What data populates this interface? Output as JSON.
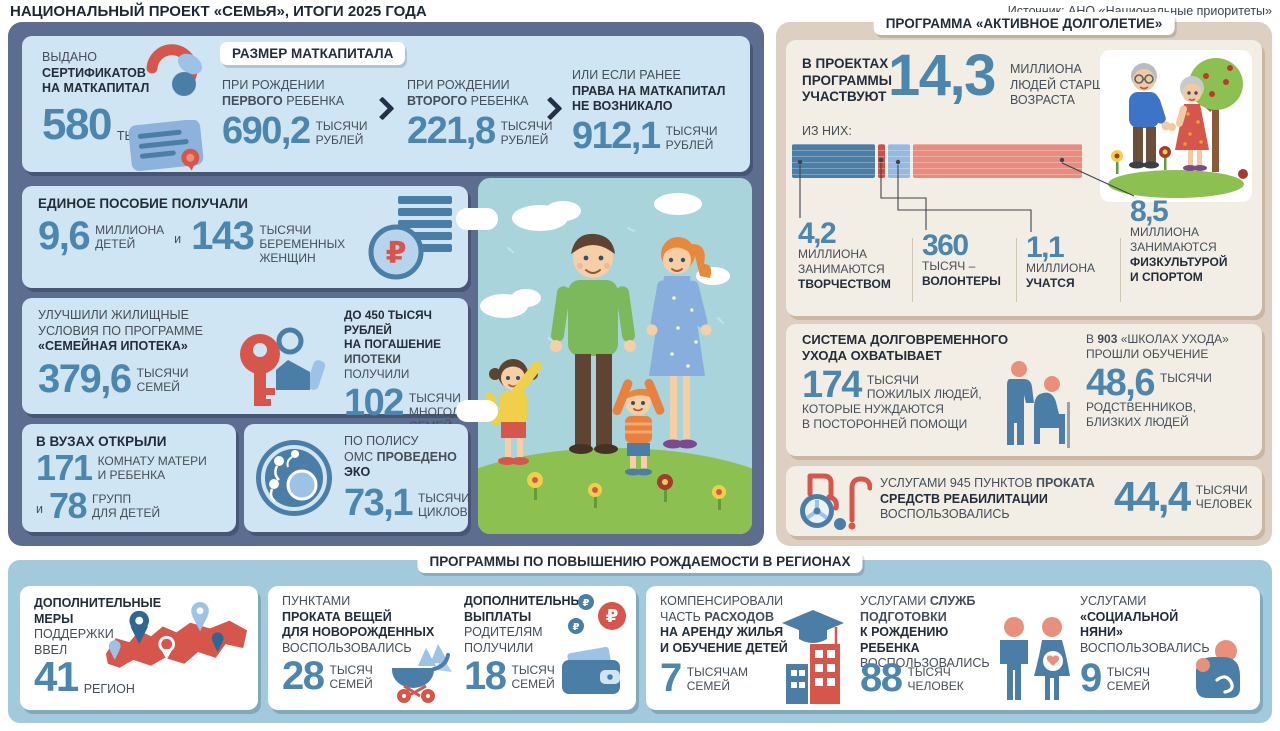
{
  "header": {
    "title": "НАЦИОНАЛЬНЫЙ ПРОЕКТ «СЕМЬЯ», ИТОГИ 2025 ГОДА",
    "source": "Источник: АНО «Национальные приоритеты»"
  },
  "colors": {
    "navy_panel": "#5d6d90",
    "card_blue": "#cfe5f3",
    "tan_panel": "#ddd0c2",
    "cream_card": "#f3eee5",
    "band_blue": "#a2c9dc",
    "number_blue": "#4c86ad",
    "accent_red": "#d6564c",
    "accent_blue": "#4b7ea6",
    "light_blue": "#9cc2e5",
    "salmon": "#e8907c"
  },
  "left": {
    "certificates": {
      "t1": "ВЫДАНО",
      "t2": "СЕРТИФИКАТОВ",
      "t3": "НА МАТКАПИТАЛ",
      "value": "580",
      "unit": "ТЫС."
    },
    "matcapital": {
      "label": "РАЗМЕР МАТКАПИТАЛА",
      "col1": {
        "top": "ПРИ РОЖДЕНИИ",
        "bold": "ПЕРВОГО",
        "rest": " РЕБЕНКА",
        "value": "690,2",
        "u1": "ТЫСЯЧИ",
        "u2": "РУБЛЕЙ"
      },
      "col2": {
        "top": "ПРИ РОЖДЕНИИ",
        "bold": "ВТОРОГО",
        "rest": " РЕБЕНКА",
        "value": "221,8",
        "u1": "ТЫСЯЧИ",
        "u2": "РУБЛЕЙ"
      },
      "col3": {
        "top": "ИЛИ ЕСЛИ РАНЕЕ",
        "bold1": "ПРАВА НА МАТКАПИТАЛ",
        "bold2": "НЕ ВОЗНИКАЛО",
        "value": "912,1",
        "u1": "ТЫСЯЧИ",
        "u2": "РУБЛЕЙ"
      }
    },
    "benefit": {
      "title": "ЕДИНОЕ ПОСОБИЕ ПОЛУЧАЛИ",
      "v1": "9,6",
      "v1u1": "МИЛЛИОНА",
      "v1u2": "ДЕТЕЙ",
      "conj": "и",
      "v2": "143",
      "v2u1": "ТЫСЯЧИ",
      "v2u2": "БЕРЕМЕННЫХ",
      "v2u3": "ЖЕНЩИН"
    },
    "mortgage": {
      "t1": "УЛУЧШИЛИ ЖИЛИЩНЫЕ",
      "t2": "УСЛОВИЯ ПО ПРОГРАММЕ",
      "t3": "«СЕМЕЙНАЯ ИПОТЕКА»",
      "v1": "379,6",
      "v1u1": "ТЫСЯЧИ",
      "v1u2": "СЕМЕЙ",
      "r1": "ДО 450 ТЫСЯЧ РУБЛЕЙ",
      "r2": "НА ПОГАШЕНИЕ",
      "r3b": "ИПОТЕКИ",
      "r3": " ПОЛУЧИЛИ",
      "v2": "102",
      "v2u1": "ТЫСЯЧИ",
      "v2u2": "МНОГОДЕТНЫХ",
      "v2u3": "СЕМЕЙ"
    },
    "universities": {
      "title": "В ВУЗАХ ОТКРЫЛИ",
      "v1": "171",
      "v1u1": "КОМНАТУ МАТЕРИ",
      "v1u2": "И РЕБЕНКА",
      "conj": "и",
      "v2": "78",
      "v2u1": "ГРУПП",
      "v2u2": "ДЛЯ ДЕТЕЙ"
    },
    "ivf": {
      "t1": "ПО ПОЛИСУ",
      "t2a": "ОМС ",
      "t2b": "ПРОВЕДЕНО",
      "t3": "ЭКО",
      "v": "73,1",
      "u1": "ТЫСЯЧИ",
      "u2": "ЦИКЛОВ"
    }
  },
  "right": {
    "label": "ПРОГРАММА «АКТИВНОЕ ДОЛГОЛЕТИЕ»",
    "participants": {
      "t1": "В ПРОЕКТАХ",
      "t2": "ПРОГРАММЫ",
      "t3": "УЧАСТВУЮТ",
      "value": "14,3",
      "u1": "МИЛЛИОНА",
      "u2": "ЛЮДЕЙ СТАРШЕГО",
      "u3": "ВОЗРАСТА",
      "of_them": "ИЗ НИХ:"
    },
    "breakdown": [
      {
        "value": "4,2",
        "l1": "МИЛЛИОНА",
        "l2": "ЗАНИМАЮТСЯ",
        "bold": "ТВОРЧЕСТВОМ"
      },
      {
        "value": "360",
        "l1": "ТЫСЯЧ –",
        "bold": "ВОЛОНТЕРЫ"
      },
      {
        "value": "1,1",
        "l1": "МИЛЛИОНА",
        "bold": "УЧАТСЯ"
      },
      {
        "value": "8,5",
        "l1": "МИЛЛИОНА",
        "l2": "ЗАНИМАЮТСЯ",
        "bold": "ФИЗКУЛЬТУРОЙ",
        "bold2": "И СПОРТОМ"
      }
    ],
    "care": {
      "t1": "СИСТЕМА ДОЛГОВРЕМЕННОГО",
      "t2": "УХОДА ОХВАТЫВАЕТ",
      "v1": "174",
      "v1u1": "ТЫСЯЧИ",
      "v1u2": "ПОЖИЛЫХ ЛЮДЕЙ,",
      "d1": "КОТОРЫЕ НУЖДАЮТСЯ",
      "d2": "В ПОСТОРОННЕЙ ПОМОЩИ",
      "r1a": "В ",
      "r1b": "903",
      "r1c": " «ШКОЛАХ УХОДА»",
      "r2": "ПРОШЛИ ОБУЧЕНИЕ",
      "v2": "48,6",
      "v2u": "ТЫСЯЧИ",
      "rd1": "РОДСТВЕННИКОВ,",
      "rd2": "БЛИЗКИХ ЛЮДЕЙ"
    },
    "rehab": {
      "t1a": "УСЛУГАМИ 945 ПУНКТОВ ",
      "t1b": "ПРОКАТА",
      "t2": "СРЕДСТВ РЕАБИЛИТАЦИИ",
      "t3": "ВОСПОЛЬЗОВАЛИСЬ",
      "v": "44,4",
      "u1": "ТЫСЯЧИ",
      "u2": "ЧЕЛОВЕК"
    }
  },
  "bottom": {
    "label": "ПРОГРАММЫ ПО ПОВЫШЕНИЮ РОЖДАЕМОСТИ В РЕГИОНАХ",
    "regions": {
      "t1": "ДОПОЛНИТЕЛЬНЫЕ",
      "t2": "МЕРЫ",
      "t3": "ПОДДЕРЖКИ",
      "t4": "ВВЕЛ",
      "v": "41",
      "u": "РЕГИОН"
    },
    "rental_points": {
      "t1": "ПУНКТАМИ",
      "t2": "ПРОКАТА ВЕЩЕЙ",
      "t3": "ДЛЯ НОВОРОЖДЕННЫХ",
      "t4": "ВОСПОЛЬЗОВАЛИСЬ",
      "v": "28",
      "u1": "ТЫСЯЧ",
      "u2": "СЕМЕЙ"
    },
    "payments": {
      "t1": "ДОПОЛНИТЕЛЬНЫЕ",
      "t2": "ВЫПЛАТЫ",
      "t3": "РОДИТЕЛЯМ",
      "t4": "ПОЛУЧИЛИ",
      "v": "18",
      "u1": "ТЫСЯЧ",
      "u2": "СЕМЕЙ"
    },
    "compensation": {
      "t1": "КОМПЕНСИРОВАЛИ",
      "t2a": "ЧАСТЬ ",
      "t2b": "РАСХОДОВ",
      "t3": "НА АРЕНДУ ЖИЛЬЯ",
      "t4": "И ОБУЧЕНИЕ ДЕТЕЙ",
      "v": "7",
      "u1": "ТЫСЯЧАМ",
      "u2": "СЕМЕЙ"
    },
    "birth_prep": {
      "t1a": "УСЛУГАМИ ",
      "t1b": "СЛУЖБ ПОДГОТОВКИ",
      "t2": "К РОЖДЕНИЮ",
      "t3": "РЕБЕНКА",
      "t4": "ВОСПОЛЬЗОВАЛИСЬ",
      "v": "88",
      "u1": "ТЫСЯЧ",
      "u2": "ЧЕЛОВЕК"
    },
    "nanny": {
      "t1": "УСЛУГАМИ",
      "t2": "«СОЦИАЛЬНОЙ",
      "t3": "НЯНИ»",
      "t4": "ВОСПОЛЬЗОВАЛИСЬ",
      "v": "9",
      "u1": "ТЫСЯЧ",
      "u2": "СЕМЕЙ"
    }
  },
  "chart_data": {
    "type": "bar",
    "stacked": true,
    "title": "ИЗ НИХ:",
    "context": "участники программы «Активное долголетие», всего 14,3 млн людей старшего возраста",
    "unit": "млн человек",
    "total": 14.3,
    "legend_position": "below",
    "segments": [
      {
        "key": "creativity",
        "label": "занимаются творчеством",
        "value": 4.2,
        "color": "#4b7ea6"
      },
      {
        "key": "volunteers",
        "label": "волонтеры",
        "value": 0.36,
        "color": "#cb5147"
      },
      {
        "key": "study",
        "label": "учатся",
        "value": 1.1,
        "color": "#94badf"
      },
      {
        "key": "sport",
        "label": "занимаются физкультурой и спортом",
        "value": 8.5,
        "color": "#e78c7e"
      }
    ]
  }
}
